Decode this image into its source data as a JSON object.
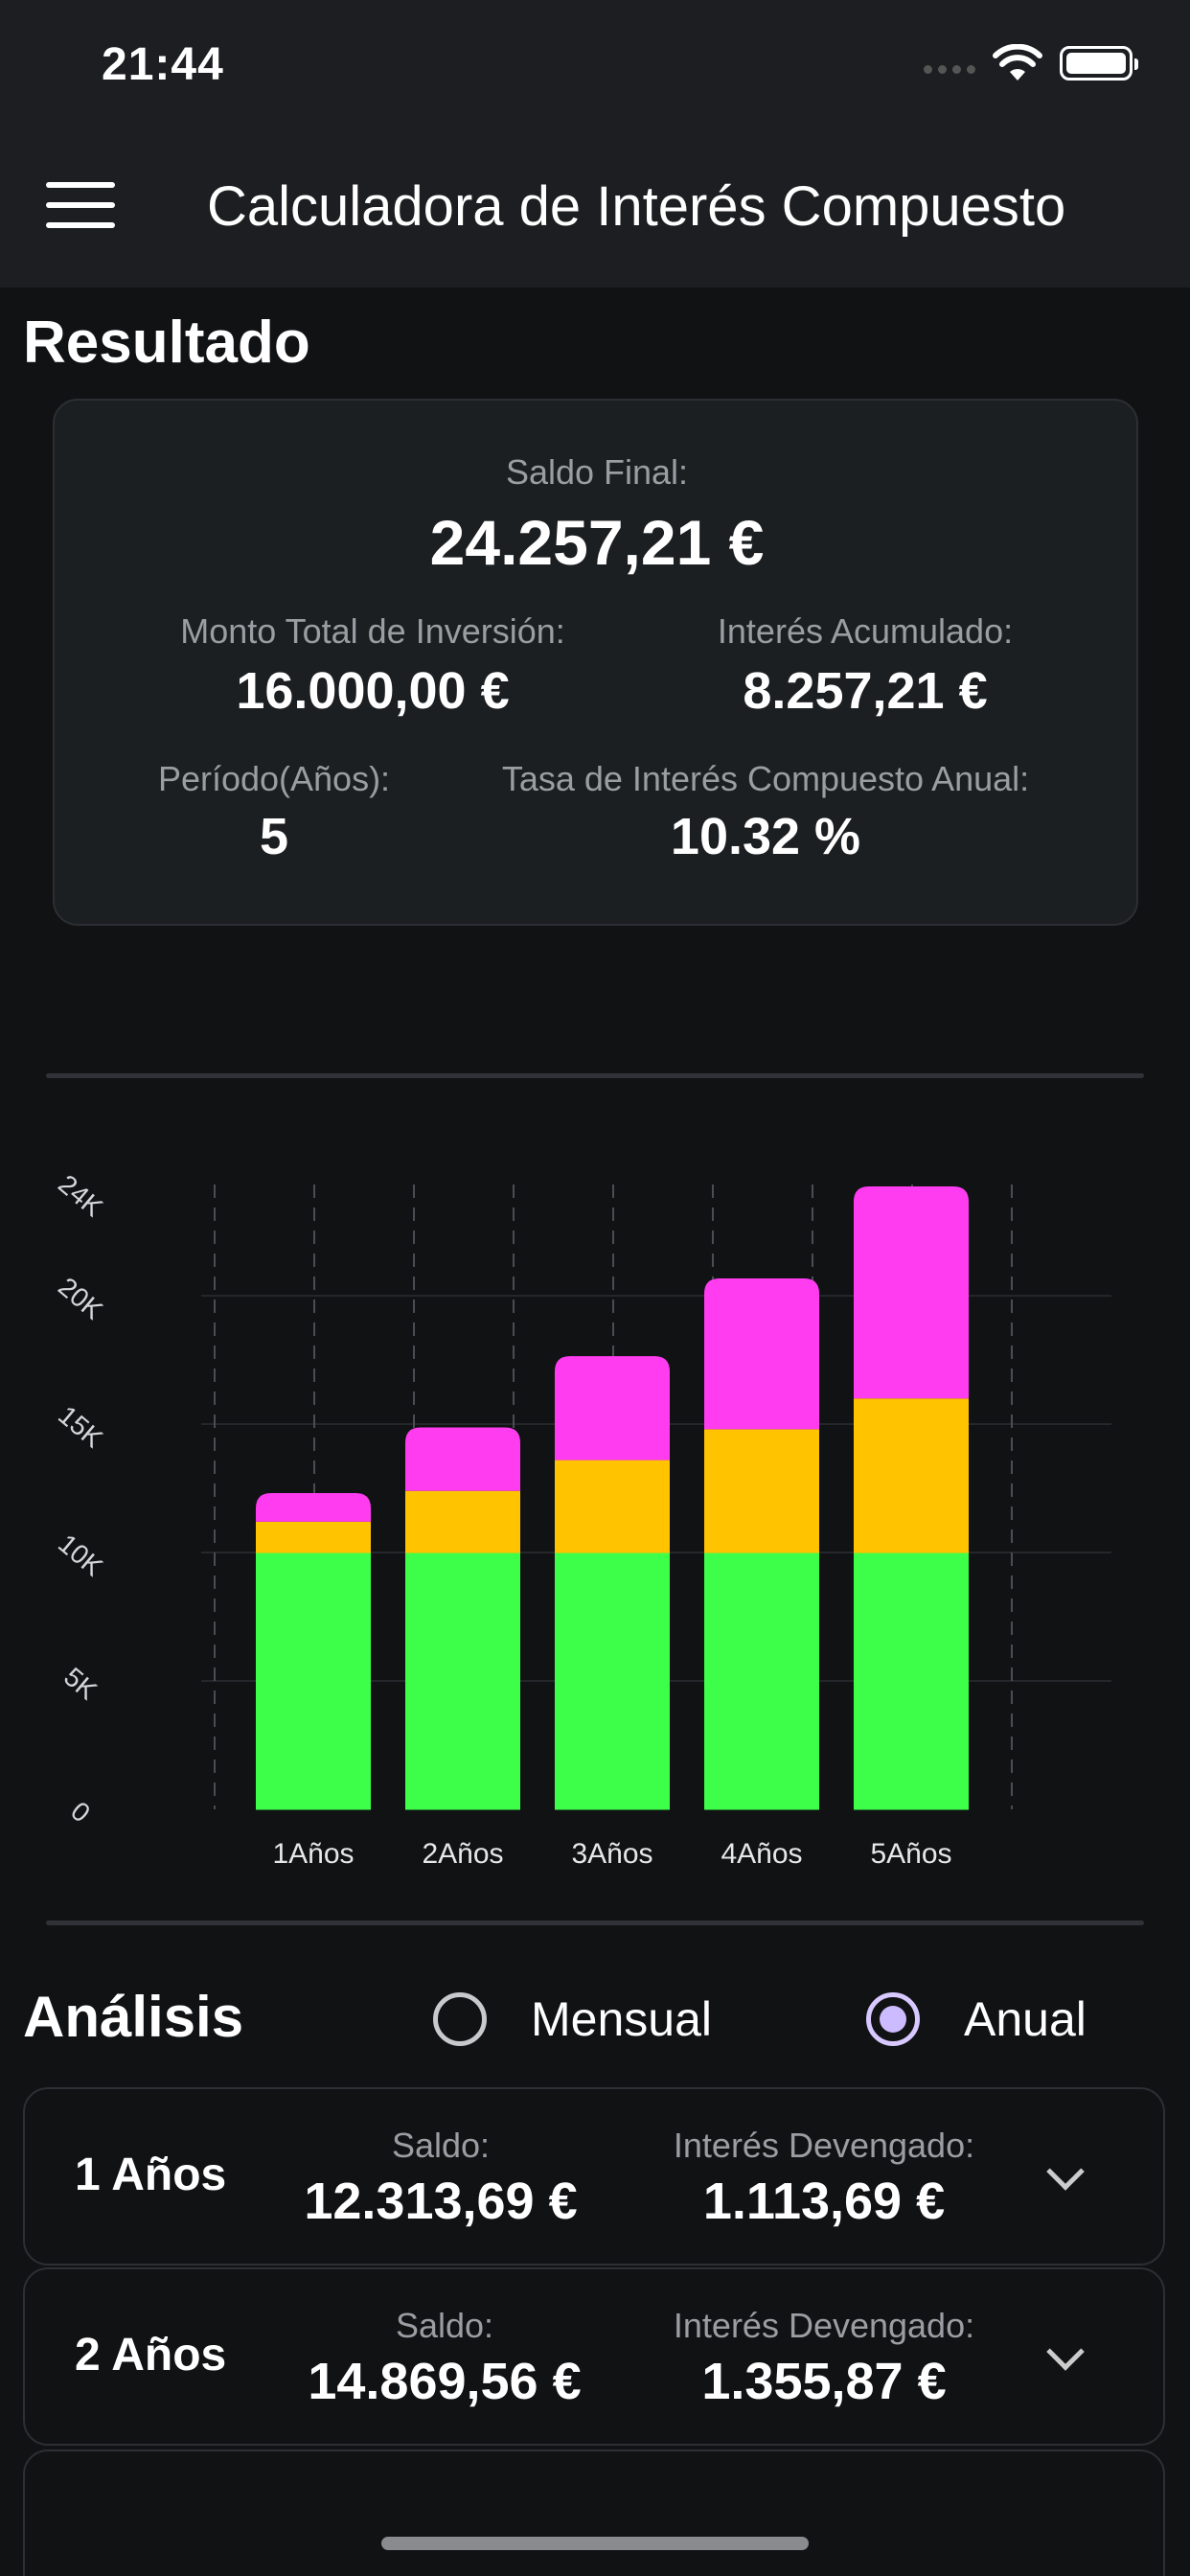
{
  "status": {
    "time": "21:44"
  },
  "app": {
    "title": "Calculadora de Interés Compuesto"
  },
  "result": {
    "section_title": "Resultado",
    "final_balance_label": "Saldo Final:",
    "final_balance": "24.257,21 €",
    "total_investment_label": "Monto Total de Inversión:",
    "total_investment": "16.000,00 €",
    "accumulated_interest_label": "Interés Acumulado:",
    "accumulated_interest": "8.257,21 €",
    "period_label": "Período(Años):",
    "period": "5",
    "annual_rate_label": "Tasa de Interés Compuesto Anual:",
    "annual_rate": "10.32 %"
  },
  "chart_data": {
    "type": "bar",
    "stacked": true,
    "categories": [
      "1Años",
      "2Años",
      "3Años",
      "4Años",
      "5Años"
    ],
    "series": [
      {
        "color": "#3dff4a",
        "values": [
          10000,
          10000,
          10000,
          10000,
          10000
        ]
      },
      {
        "color": "#ffc300",
        "values": [
          1200,
          2400,
          3600,
          4800,
          6000
        ]
      },
      {
        "color": "#ff3cf0",
        "values": [
          1114,
          2470,
          4045,
          5875,
          8257
        ]
      }
    ],
    "y_ticks": [
      "0",
      "5K",
      "10K",
      "15K",
      "20K",
      "24K"
    ],
    "ylim": [
      0,
      24257
    ],
    "grid": true
  },
  "analysis": {
    "title": "Análisis",
    "options": [
      {
        "label": "Mensual",
        "selected": false
      },
      {
        "label": "Anual",
        "selected": true
      }
    ],
    "rows": [
      {
        "year": "1 Años",
        "balance_label": "Saldo:",
        "balance": "12.313,69 €",
        "interest_label": "Interés Devengado:",
        "interest": "1.113,69 €"
      },
      {
        "year": "2 Años",
        "balance_label": "Saldo:",
        "balance": "14.869,56 €",
        "interest_label": "Interés Devengado:",
        "interest": "1.355,87 €"
      }
    ]
  }
}
